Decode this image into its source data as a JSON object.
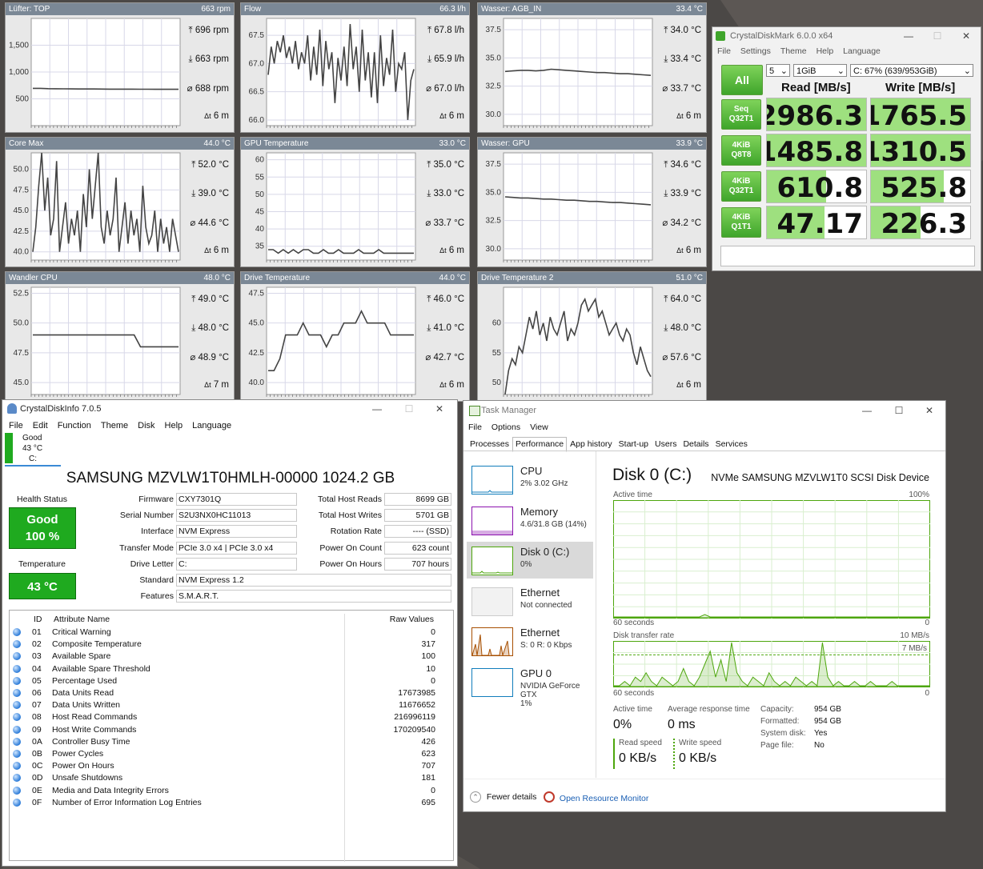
{
  "colors": {
    "panel_title": "#7b8896",
    "cdm_green": "#3fa52b",
    "cdi_good": "#1faa1f",
    "tm_disk": "#4da60c",
    "tm_cpu": "#117dbb",
    "tm_mem": "#8b12ae",
    "tm_eth": "#a74f01"
  },
  "panels": [
    {
      "title": "Lüfter: TOP",
      "value": "663 rpm",
      "max": "696 rpm",
      "min": "663 rpm",
      "avg": "688 rpm",
      "dur": "6 m",
      "yticks": [
        "1,500",
        "1,000",
        "500"
      ],
      "tickv": [
        1500,
        1000,
        500
      ],
      "ymin": 0,
      "ymax": 2000,
      "series": [
        696,
        696,
        690,
        688,
        686,
        685,
        684,
        684,
        683,
        682,
        681,
        681,
        680,
        680,
        679,
        679,
        678,
        678,
        677,
        677
      ]
    },
    {
      "title": "Flow",
      "value": "66.3 l/h",
      "max": "67.8 l/h",
      "min": "65.9 l/h",
      "avg": "67.0 l/h",
      "dur": "6 m",
      "yticks": [
        "67.5",
        "67.0",
        "66.5",
        "66.0"
      ],
      "tickv": [
        67.5,
        67.0,
        66.5,
        66.0
      ],
      "ymin": 65.9,
      "ymax": 67.8,
      "series": [
        66.8,
        67.3,
        67.0,
        67.4,
        67.2,
        67.5,
        67.1,
        67.3,
        67.0,
        67.4,
        66.9,
        67.2,
        67.0,
        67.5,
        66.7,
        67.3,
        66.8,
        67.6,
        66.6,
        67.4,
        66.9,
        67.2,
        66.3,
        67.1,
        66.7,
        67.3,
        66.6,
        67.7,
        66.9,
        67.3,
        66.5,
        67.6,
        66.7,
        67.2,
        66.4,
        67.2,
        66.3,
        67.5,
        66.6,
        67.1,
        66.8,
        67.6,
        66.5,
        67.0,
        66.9,
        67.2,
        66.0,
        66.7,
        66.9
      ],
      "spike": true
    },
    {
      "title": "Wasser: AGB_IN",
      "value": "33.4 °C",
      "max": "34.0 °C",
      "min": "33.4 °C",
      "avg": "33.7 °C",
      "dur": "6 m",
      "yticks": [
        "37.5",
        "35.0",
        "32.5",
        "30.0"
      ],
      "tickv": [
        37.5,
        35.0,
        32.5,
        30.0
      ],
      "ymin": 29,
      "ymax": 38.5,
      "series": [
        33.8,
        33.85,
        33.9,
        33.9,
        33.85,
        33.9,
        34.0,
        33.95,
        33.9,
        33.85,
        33.8,
        33.75,
        33.7,
        33.7,
        33.65,
        33.6,
        33.6,
        33.55,
        33.5,
        33.45
      ]
    },
    {
      "title": "Core Max",
      "value": "44.0 °C",
      "max": "52.0 °C",
      "min": "39.0 °C",
      "avg": "44.6 °C",
      "dur": "6 m",
      "yticks": [
        "50.0",
        "47.5",
        "45.0",
        "42.5",
        "40.0"
      ],
      "tickv": [
        50,
        47.5,
        45,
        42.5,
        40
      ],
      "ymin": 39,
      "ymax": 52,
      "series": [
        40,
        43,
        48,
        52,
        45,
        49,
        42,
        44,
        51,
        40,
        43,
        46,
        41,
        44,
        42,
        45,
        40,
        47,
        43,
        50,
        44,
        48,
        52,
        43,
        41,
        45,
        42,
        44,
        49,
        40,
        43,
        46,
        41,
        45,
        42,
        44,
        40,
        48,
        43,
        41,
        42,
        45,
        40,
        44,
        41,
        43,
        40,
        44,
        42,
        40
      ],
      "spike": false
    },
    {
      "title": "GPU Temperature",
      "value": "33.0 °C",
      "max": "35.0 °C",
      "min": "33.0 °C",
      "avg": "33.7 °C",
      "dur": "6 m",
      "yticks": [
        "60",
        "55",
        "50",
        "45",
        "40",
        "35"
      ],
      "tickv": [
        60,
        55,
        50,
        45,
        40,
        35
      ],
      "ymin": 31,
      "ymax": 62,
      "series": [
        34,
        34,
        33,
        34,
        33,
        34,
        33,
        34,
        34,
        33,
        33,
        34,
        33,
        33,
        34,
        33,
        33,
        33,
        34,
        33,
        33,
        33,
        34,
        33,
        33,
        33,
        33,
        33,
        33,
        33
      ]
    },
    {
      "title": "Wasser: GPU",
      "value": "33.9 °C",
      "max": "34.6 °C",
      "min": "33.9 °C",
      "avg": "34.2 °C",
      "dur": "6 m",
      "yticks": [
        "37.5",
        "35.0",
        "32.5",
        "30.0"
      ],
      "tickv": [
        37.5,
        35.0,
        32.5,
        30.0
      ],
      "ymin": 29,
      "ymax": 38.5,
      "series": [
        34.6,
        34.55,
        34.5,
        34.5,
        34.45,
        34.4,
        34.4,
        34.35,
        34.3,
        34.3,
        34.25,
        34.2,
        34.2,
        34.15,
        34.1,
        34.1,
        34.05,
        34.0,
        33.95,
        33.9
      ]
    },
    {
      "title": "Wandler CPU",
      "value": "48.0 °C",
      "max": "49.0 °C",
      "min": "48.0 °C",
      "avg": "48.9 °C",
      "dur": "7 m",
      "yticks": [
        "52.5",
        "50.0",
        "47.5",
        "45.0"
      ],
      "tickv": [
        52.5,
        50.0,
        47.5,
        45.0
      ],
      "ymin": 44,
      "ymax": 53,
      "series": [
        49,
        49,
        49,
        49,
        49,
        49,
        49,
        49,
        49,
        49,
        49,
        49,
        49,
        49,
        49,
        49,
        49,
        48,
        48,
        48,
        48,
        48,
        48,
        48
      ]
    },
    {
      "title": "Drive Temperature",
      "value": "44.0 °C",
      "max": "46.0 °C",
      "min": "41.0 °C",
      "avg": "42.7 °C",
      "dur": "6 m",
      "yticks": [
        "47.5",
        "45.0",
        "42.5",
        "40.0"
      ],
      "tickv": [
        47.5,
        45.0,
        42.5,
        40.0
      ],
      "ymin": 39,
      "ymax": 48,
      "series": [
        41,
        41,
        42,
        44,
        44,
        44,
        45,
        44,
        44,
        44,
        43,
        44,
        44,
        45,
        45,
        45,
        46,
        45,
        45,
        45,
        45,
        44,
        44,
        44,
        44,
        44
      ]
    },
    {
      "title": "Drive Temperature 2",
      "value": "51.0 °C",
      "max": "64.0 °C",
      "min": "48.0 °C",
      "avg": "57.6 °C",
      "dur": "6 m",
      "yticks": [
        "60",
        "55",
        "50"
      ],
      "tickv": [
        60,
        55,
        50
      ],
      "ymin": 48,
      "ymax": 66,
      "series": [
        48,
        52,
        54,
        53,
        56,
        55,
        58,
        61,
        59,
        62,
        58,
        60,
        57,
        61,
        59,
        58,
        60,
        62,
        57,
        59,
        58,
        60,
        63,
        64,
        62,
        63,
        64,
        61,
        62,
        60,
        58,
        59,
        60,
        58,
        57,
        59,
        58,
        55,
        53,
        56,
        54,
        52,
        51
      ]
    }
  ],
  "cdm": {
    "title": "CrystalDiskMark 6.0.0 x64",
    "menu": [
      "File",
      "Settings",
      "Theme",
      "Help",
      "Language"
    ],
    "all": "All",
    "count": "5",
    "size": "1GiB",
    "drive": "C: 67% (639/953GiB)",
    "read_head": "Read [MB/s]",
    "write_head": "Write [MB/s]",
    "rows": [
      {
        "l1": "Seq",
        "l2": "Q32T1",
        "read": "2986.3",
        "write": "1765.5",
        "rf": 1.0,
        "wf": 1.0
      },
      {
        "l1": "4KiB",
        "l2": "Q8T8",
        "read": "1485.8",
        "write": "1310.5",
        "rf": 1.0,
        "wf": 1.0
      },
      {
        "l1": "4KiB",
        "l2": "Q32T1",
        "read": "610.8",
        "write": "525.8",
        "rf": 0.6,
        "wf": 0.73
      },
      {
        "l1": "4KiB",
        "l2": "Q1T1",
        "read": "47.17",
        "write": "226.3",
        "rf": 0.58,
        "wf": 0.5
      }
    ]
  },
  "cdi": {
    "title": "CrystalDiskInfo 7.0.5",
    "menu": [
      "File",
      "Edit",
      "Function",
      "Theme",
      "Disk",
      "Help",
      "Language"
    ],
    "mini_status": "Good",
    "mini_temp": "43 °C",
    "mini_drive": "C:",
    "model": "SAMSUNG MZVLW1T0HMLH-00000 1024.2 GB",
    "health_label": "Health Status",
    "health": "Good",
    "health_pct": "100 %",
    "temp_label": "Temperature",
    "temp": "43 °C",
    "fields": {
      "firmware_l": "Firmware",
      "firmware": "CXY7301Q",
      "serial_l": "Serial Number",
      "serial": "S2U3NX0HC11013",
      "interface_l": "Interface",
      "interface": "NVM Express",
      "transfer_l": "Transfer Mode",
      "transfer": "PCIe 3.0 x4 | PCIe 3.0 x4",
      "letter_l": "Drive Letter",
      "letter": "C:",
      "standard_l": "Standard",
      "standard": "NVM Express 1.2",
      "features_l": "Features",
      "features": "S.M.A.R.T.",
      "reads_l": "Total Host Reads",
      "reads": "8699 GB",
      "writes_l": "Total Host Writes",
      "writes": "5701 GB",
      "rotation_l": "Rotation Rate",
      "rotation": "---- (SSD)",
      "count_l": "Power On Count",
      "count": "623 count",
      "hours_l": "Power On Hours",
      "hours": "707 hours"
    },
    "col_id": "ID",
    "col_name": "Attribute Name",
    "col_raw": "Raw Values",
    "attrs": [
      {
        "id": "01",
        "name": "Critical Warning",
        "raw": "0"
      },
      {
        "id": "02",
        "name": "Composite Temperature",
        "raw": "317"
      },
      {
        "id": "03",
        "name": "Available Spare",
        "raw": "100"
      },
      {
        "id": "04",
        "name": "Available Spare Threshold",
        "raw": "10"
      },
      {
        "id": "05",
        "name": "Percentage Used",
        "raw": "0"
      },
      {
        "id": "06",
        "name": "Data Units Read",
        "raw": "17673985"
      },
      {
        "id": "07",
        "name": "Data Units Written",
        "raw": "11676652"
      },
      {
        "id": "08",
        "name": "Host Read Commands",
        "raw": "216996119"
      },
      {
        "id": "09",
        "name": "Host Write Commands",
        "raw": "170209540"
      },
      {
        "id": "0A",
        "name": "Controller Busy Time",
        "raw": "426"
      },
      {
        "id": "0B",
        "name": "Power Cycles",
        "raw": "623"
      },
      {
        "id": "0C",
        "name": "Power On Hours",
        "raw": "707"
      },
      {
        "id": "0D",
        "name": "Unsafe Shutdowns",
        "raw": "181"
      },
      {
        "id": "0E",
        "name": "Media and Data Integrity Errors",
        "raw": "0"
      },
      {
        "id": "0F",
        "name": "Number of Error Information Log Entries",
        "raw": "695"
      }
    ]
  },
  "tm": {
    "title": "Task Manager",
    "menu": [
      "File",
      "Options",
      "View"
    ],
    "tabs": [
      "Processes",
      "Performance",
      "App history",
      "Start-up",
      "Users",
      "Details",
      "Services"
    ],
    "side": [
      {
        "name": "CPU",
        "sub": "2% 3.02 GHz"
      },
      {
        "name": "Memory",
        "sub": "4.6/31.8 GB (14%)"
      },
      {
        "name": "Disk 0 (C:)",
        "sub": "0%"
      },
      {
        "name": "Ethernet",
        "sub": "Not connected"
      },
      {
        "name": "Ethernet",
        "sub": "S: 0 R: 0 Kbps"
      },
      {
        "name": "GPU 0",
        "sub": "NVIDIA GeForce GTX",
        "sub2": "1%"
      }
    ],
    "disk_title": "Disk 0 (C:)",
    "disk_model": "NVMe SAMSUNG MZVLW1T0 SCSI Disk Device",
    "active_time": "Active time",
    "pct100": "100%",
    "sixty": "60 seconds",
    "zero": "0",
    "rate_label": "Disk transfer rate",
    "rate_max": "10 MB/s",
    "rate_mid": "7 MB/s",
    "stats": {
      "active_l": "Active time",
      "active": "0%",
      "resp_l": "Average response time",
      "resp": "0 ms",
      "read_l": "Read speed",
      "read": "0 KB/s",
      "write_l": "Write speed",
      "write": "0 KB/s",
      "cap_l": "Capacity:",
      "cap": "954 GB",
      "fmt_l": "Formatted:",
      "fmt": "954 GB",
      "sys_l": "System disk:",
      "sys": "Yes",
      "page_l": "Page file:",
      "page": "No"
    },
    "active_series": [
      0,
      0,
      0,
      0,
      0,
      0,
      0,
      0,
      0,
      0,
      0,
      0,
      0,
      0,
      0,
      0,
      0,
      2,
      0,
      0,
      0,
      0,
      0,
      0,
      0,
      0,
      0,
      0,
      0,
      0,
      0,
      0,
      0,
      0,
      0,
      0,
      0,
      0,
      0,
      0,
      0,
      0,
      0,
      0,
      0,
      0,
      0,
      0,
      0,
      0,
      0,
      0,
      0,
      0,
      0,
      0,
      0,
      0,
      0,
      0
    ],
    "read_series": [
      0,
      0,
      1,
      0,
      2,
      1,
      3,
      1,
      0,
      2,
      1,
      0,
      1,
      4,
      1,
      0,
      2,
      5,
      8,
      2,
      6,
      1,
      10,
      3,
      1,
      0,
      2,
      1,
      0,
      3,
      1,
      0,
      1,
      0,
      2,
      1,
      0,
      1,
      0,
      10,
      2,
      0,
      1,
      0,
      0,
      1,
      0,
      0,
      1,
      0,
      0,
      0,
      1,
      0,
      0,
      0,
      0,
      0,
      0,
      0
    ],
    "fewer": "Fewer details",
    "orm": "Open Resource Monitor"
  }
}
